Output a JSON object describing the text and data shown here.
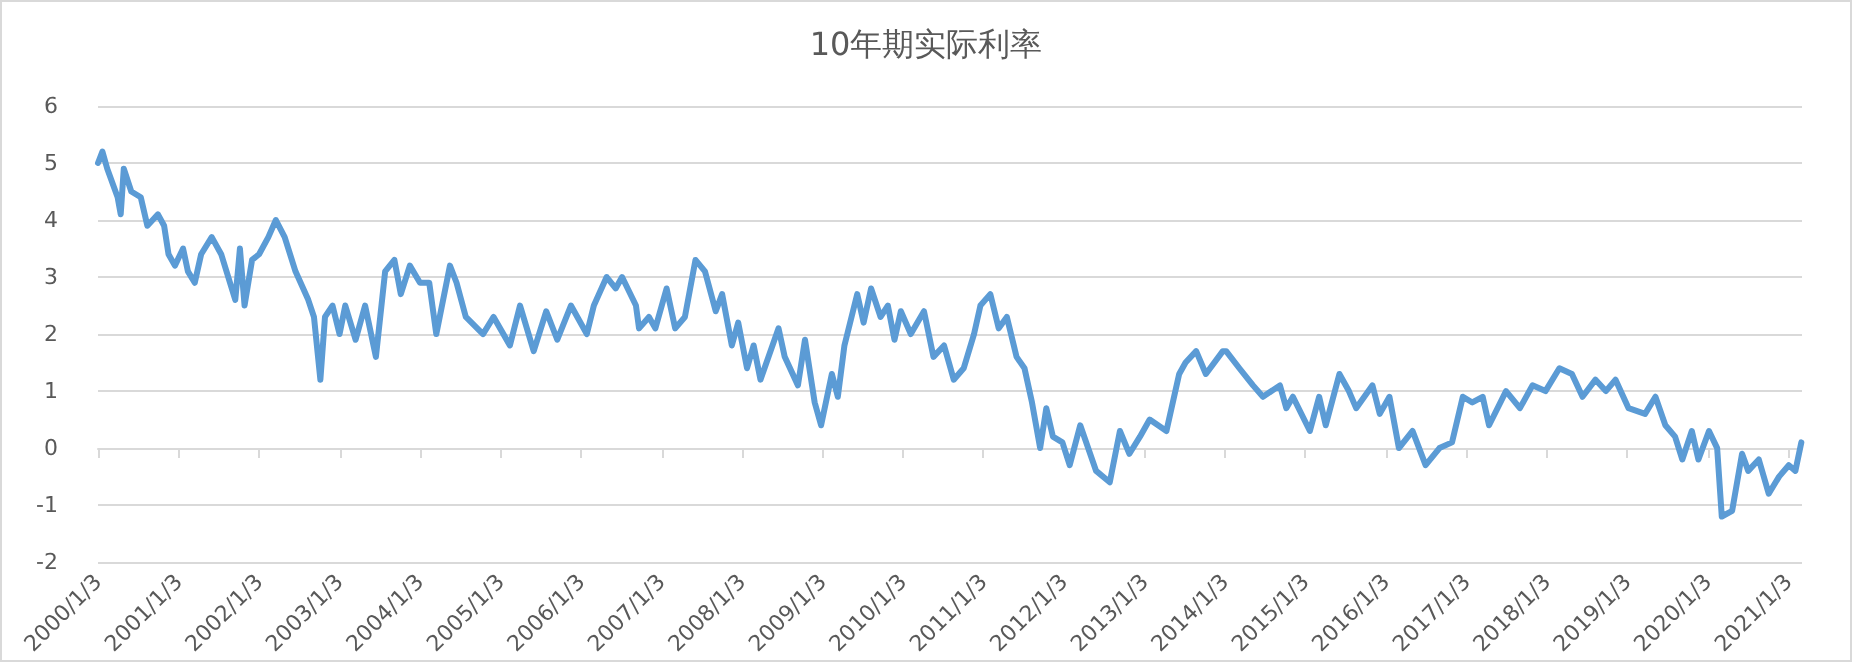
{
  "chart_data": {
    "type": "line",
    "title": "10年期实际利率",
    "grid": "y",
    "marker": "none",
    "line_style": "solid",
    "ylim": [
      -2,
      6
    ],
    "yticks": [
      -2,
      -1,
      0,
      1,
      2,
      3,
      4,
      5,
      6
    ],
    "xlim": [
      "2000-01-03",
      "2021-03-05"
    ],
    "xticks": [
      {
        "value": "2000-01-03",
        "label": "2000/1/3"
      },
      {
        "value": "2001-01-03",
        "label": "2001/1/3"
      },
      {
        "value": "2002-01-03",
        "label": "2002/1/3"
      },
      {
        "value": "2003-01-03",
        "label": "2003/1/3"
      },
      {
        "value": "2004-01-03",
        "label": "2004/1/3"
      },
      {
        "value": "2005-01-03",
        "label": "2005/1/3"
      },
      {
        "value": "2006-01-03",
        "label": "2006/1/3"
      },
      {
        "value": "2007-01-03",
        "label": "2007/1/3"
      },
      {
        "value": "2008-01-03",
        "label": "2008/1/3"
      },
      {
        "value": "2009-01-03",
        "label": "2009/1/3"
      },
      {
        "value": "2010-01-03",
        "label": "2010/1/3"
      },
      {
        "value": "2011-01-03",
        "label": "2011/1/3"
      },
      {
        "value": "2012-01-03",
        "label": "2012/1/3"
      },
      {
        "value": "2013-01-03",
        "label": "2013/1/3"
      },
      {
        "value": "2014-01-03",
        "label": "2014/1/3"
      },
      {
        "value": "2015-01-03",
        "label": "2015/1/3"
      },
      {
        "value": "2016-01-03",
        "label": "2016/1/3"
      },
      {
        "value": "2017-01-03",
        "label": "2017/1/3"
      },
      {
        "value": "2018-01-03",
        "label": "2018/1/3"
      },
      {
        "value": "2019-01-03",
        "label": "2019/1/3"
      },
      {
        "value": "2020-01-03",
        "label": "2020/1/3"
      },
      {
        "value": "2021-01-03",
        "label": "2021/1/3"
      }
    ],
    "series": [
      {
        "color": "#5b9bd5",
        "x": [
          "2000-01-03",
          "2000-01-23",
          "2000-02-14",
          "2000-04-01",
          "2000-04-15",
          "2000-04-29",
          "2000-06-02",
          "2000-07-15",
          "2000-08-14",
          "2000-10-01",
          "2000-10-29",
          "2000-11-18",
          "2000-12-17",
          "2001-01-23",
          "2001-02-14",
          "2001-03-17",
          "2001-04-15",
          "2001-06-02",
          "2001-07-15",
          "2001-09-17",
          "2001-10-08",
          "2001-10-29",
          "2001-12-02",
          "2002-01-03",
          "2002-02-14",
          "2002-03-20",
          "2002-04-29",
          "2002-06-17",
          "2002-08-14",
          "2002-09-09",
          "2002-10-08",
          "2002-10-29",
          "2002-12-02",
          "2003-01-03",
          "2003-01-29",
          "2003-03-17",
          "2003-04-29",
          "2003-06-17",
          "2003-07-29",
          "2003-09-09",
          "2003-10-08",
          "2003-11-18",
          "2004-01-03",
          "2004-02-14",
          "2004-03-17",
          "2004-05-18",
          "2004-06-17",
          "2004-07-29",
          "2004-10-15",
          "2004-12-02",
          "2005-02-14",
          "2005-04-01",
          "2005-06-02",
          "2005-07-29",
          "2005-09-17",
          "2005-11-18",
          "2006-01-29",
          "2006-03-02",
          "2006-04-29",
          "2006-06-09",
          "2006-07-08",
          "2006-09-09",
          "2006-09-23",
          "2006-11-07",
          "2006-12-06",
          "2007-01-26",
          "2007-03-06",
          "2007-04-19",
          "2007-06-06",
          "2007-07-19",
          "2007-09-06",
          "2007-10-05",
          "2007-11-18",
          "2007-12-17",
          "2008-01-26",
          "2008-02-25",
          "2008-03-27",
          "2008-06-17",
          "2008-07-15",
          "2008-09-13",
          "2008-10-15",
          "2008-11-28",
          "2008-12-27",
          "2009-02-14",
          "2009-03-13",
          "2009-04-12",
          "2009-06-09",
          "2009-07-08",
          "2009-08-11",
          "2009-09-23",
          "2009-10-26",
          "2009-11-25",
          "2009-12-24",
          "2010-02-07",
          "2010-04-08",
          "2010-05-21",
          "2010-07-08",
          "2010-08-21",
          "2010-10-05",
          "2010-11-21",
          "2010-12-20",
          "2011-02-03",
          "2011-03-13",
          "2011-04-19",
          "2011-06-02",
          "2011-07-08",
          "2011-08-11",
          "2011-09-17",
          "2011-10-15",
          "2011-11-14",
          "2011-12-27",
          "2012-01-29",
          "2012-03-17",
          "2012-05-28",
          "2012-07-29",
          "2012-09-13",
          "2012-10-26",
          "2012-12-13",
          "2013-01-26",
          "2013-04-12",
          "2013-06-09",
          "2013-07-08",
          "2013-08-25",
          "2013-10-08",
          "2013-12-24",
          "2014-01-08",
          "2014-03-09",
          "2014-05-10",
          "2014-06-24",
          "2014-09-09",
          "2014-10-08",
          "2014-11-07",
          "2015-01-23",
          "2015-03-06",
          "2015-04-05",
          "2015-06-06",
          "2015-07-19",
          "2015-08-21",
          "2015-11-03",
          "2015-12-06",
          "2016-01-19",
          "2016-03-02",
          "2016-05-03",
          "2016-07-01",
          "2016-09-02",
          "2016-10-29",
          "2016-12-17",
          "2017-01-29",
          "2017-03-17",
          "2017-04-15",
          "2017-07-01",
          "2017-09-02",
          "2017-10-29",
          "2017-12-27",
          "2018-02-28",
          "2018-04-26",
          "2018-06-13",
          "2018-08-11",
          "2018-09-27",
          "2018-11-10",
          "2019-01-08",
          "2019-03-24",
          "2019-05-10",
          "2019-06-24",
          "2019-08-07",
          "2019-09-09",
          "2019-10-22",
          "2019-11-21",
          "2020-01-08",
          "2020-02-14",
          "2020-03-06",
          "2020-04-22",
          "2020-06-06",
          "2020-07-04",
          "2020-08-21",
          "2020-10-05",
          "2020-11-21",
          "2021-01-04",
          "2021-02-03",
          "2021-03-02"
        ],
        "values": [
          5.0,
          5.2,
          4.9,
          4.4,
          4.1,
          4.9,
          4.5,
          4.4,
          3.9,
          4.1,
          3.9,
          3.4,
          3.2,
          3.5,
          3.1,
          2.9,
          3.4,
          3.7,
          3.4,
          2.6,
          3.5,
          2.5,
          3.3,
          3.4,
          3.7,
          4.0,
          3.7,
          3.1,
          2.6,
          2.3,
          1.2,
          2.3,
          2.5,
          2.0,
          2.5,
          1.9,
          2.5,
          1.6,
          3.1,
          3.3,
          2.7,
          3.2,
          2.9,
          2.9,
          2.0,
          3.2,
          2.9,
          2.3,
          2.0,
          2.3,
          1.8,
          2.5,
          1.7,
          2.4,
          1.9,
          2.5,
          2.0,
          2.5,
          3.0,
          2.8,
          3.0,
          2.5,
          2.1,
          2.3,
          2.1,
          2.8,
          2.1,
          2.3,
          3.3,
          3.1,
          2.4,
          2.7,
          1.8,
          2.2,
          1.4,
          1.8,
          1.2,
          2.1,
          1.6,
          1.1,
          1.9,
          0.8,
          0.4,
          1.3,
          0.9,
          1.8,
          2.7,
          2.2,
          2.8,
          2.3,
          2.5,
          1.9,
          2.4,
          2.0,
          2.4,
          1.6,
          1.8,
          1.2,
          1.4,
          2.0,
          2.5,
          2.7,
          2.1,
          2.3,
          1.6,
          1.4,
          0.8,
          0.0,
          0.7,
          0.2,
          0.1,
          -0.3,
          0.4,
          -0.4,
          -0.6,
          0.3,
          -0.1,
          0.2,
          0.5,
          0.3,
          1.3,
          1.5,
          1.7,
          1.3,
          1.7,
          1.7,
          1.4,
          1.1,
          0.9,
          1.1,
          0.7,
          0.9,
          0.3,
          0.9,
          0.4,
          1.3,
          1.0,
          0.7,
          1.1,
          0.6,
          0.9,
          0.0,
          0.3,
          -0.3,
          0.0,
          0.1,
          0.9,
          0.8,
          0.9,
          0.4,
          1.0,
          0.7,
          1.1,
          1.0,
          1.4,
          1.3,
          0.9,
          1.2,
          1.0,
          1.2,
          0.7,
          0.6,
          0.9,
          0.4,
          0.2,
          -0.2,
          0.3,
          -0.2,
          0.3,
          0.0,
          -1.2,
          -1.1,
          -0.1,
          -0.4,
          -0.2,
          -0.8,
          -0.5,
          -0.3,
          -0.4,
          0.1
        ]
      }
    ]
  }
}
